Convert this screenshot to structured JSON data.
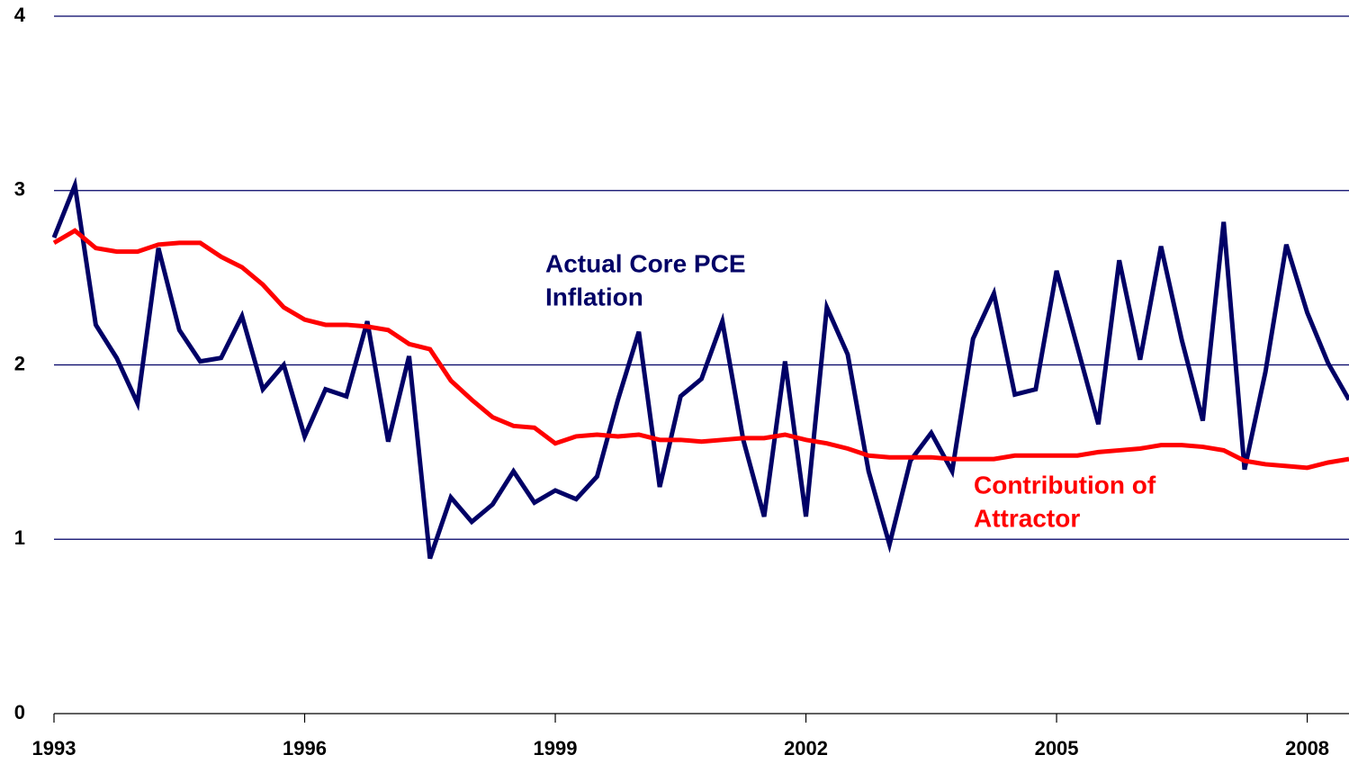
{
  "chart_data": {
    "type": "line",
    "x": [
      1993,
      1993.25,
      1993.5,
      1993.75,
      1994,
      1994.25,
      1994.5,
      1994.75,
      1995,
      1995.25,
      1995.5,
      1995.75,
      1996,
      1996.25,
      1996.5,
      1996.75,
      1997,
      1997.25,
      1997.5,
      1997.75,
      1998,
      1998.25,
      1998.5,
      1998.75,
      1999,
      1999.25,
      1999.5,
      1999.75,
      2000,
      2000.25,
      2000.5,
      2000.75,
      2001,
      2001.25,
      2001.5,
      2001.75,
      2002,
      2002.25,
      2002.5,
      2002.75,
      2003,
      2003.25,
      2003.5,
      2003.75,
      2004,
      2004.25,
      2004.5,
      2004.75,
      2005,
      2005.25,
      2005.5,
      2005.75,
      2006,
      2006.25,
      2006.5,
      2006.75,
      2007,
      2007.25,
      2007.5,
      2007.75,
      2008,
      2008.25,
      2008.5
    ],
    "series": [
      {
        "color": "#000066",
        "values": [
          2.73,
          3.03,
          2.23,
          2.04,
          1.78,
          2.67,
          2.2,
          2.02,
          2.04,
          2.28,
          1.86,
          2.0,
          1.59,
          1.86,
          1.82,
          2.25,
          1.56,
          2.05,
          0.89,
          1.24,
          1.1,
          1.2,
          1.39,
          1.21,
          1.28,
          1.23,
          1.36,
          1.8,
          2.19,
          1.3,
          1.82,
          1.92,
          2.25,
          1.57,
          1.13,
          2.02,
          1.13,
          2.33,
          2.06,
          1.39,
          0.97,
          1.45,
          1.61,
          1.39,
          2.15,
          2.41,
          1.83,
          1.86,
          2.54,
          2.1,
          1.66,
          2.6,
          2.03,
          2.68,
          2.14,
          1.68,
          2.82,
          1.4,
          1.96,
          2.69,
          2.3,
          2.01,
          1.8
        ]
      },
      {
        "color": "#ff0000",
        "values": [
          2.7,
          2.77,
          2.67,
          2.65,
          2.65,
          2.69,
          2.7,
          2.7,
          2.62,
          2.56,
          2.46,
          2.33,
          2.26,
          2.23,
          2.23,
          2.22,
          2.2,
          2.12,
          2.09,
          1.91,
          1.8,
          1.7,
          1.65,
          1.64,
          1.55,
          1.59,
          1.6,
          1.59,
          1.6,
          1.57,
          1.57,
          1.56,
          1.57,
          1.58,
          1.58,
          1.6,
          1.57,
          1.55,
          1.52,
          1.48,
          1.47,
          1.47,
          1.47,
          1.46,
          1.46,
          1.46,
          1.48,
          1.48,
          1.48,
          1.48,
          1.5,
          1.51,
          1.52,
          1.54,
          1.54,
          1.53,
          1.51,
          1.45,
          1.43,
          1.42,
          1.41,
          1.44,
          1.46
        ]
      }
    ],
    "annotations": [
      {
        "lines": [
          "Actual Core PCE",
          "Inflation"
        ],
        "color": "#000066"
      },
      {
        "lines": [
          "Contribution of",
          "Attractor"
        ],
        "color": "#ff0000"
      }
    ],
    "xlim": [
      1993,
      2008.5
    ],
    "xticks": [
      1993,
      1996,
      1999,
      2002,
      2005,
      2008
    ],
    "ylim": [
      0,
      4
    ],
    "yticks": [
      0,
      1,
      2,
      3,
      4
    ],
    "grid": true
  }
}
